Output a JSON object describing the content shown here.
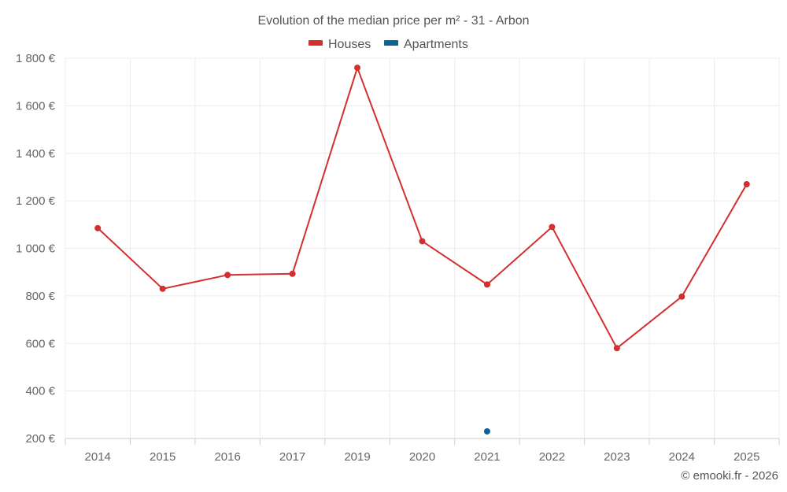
{
  "chart_data": {
    "type": "line",
    "title": "Evolution of the median price per m² - 31 - Arbon",
    "categories": [
      "2014",
      "2015",
      "2016",
      "2017",
      "2019",
      "2020",
      "2021",
      "2022",
      "2023",
      "2024",
      "2025"
    ],
    "series": [
      {
        "name": "Houses",
        "color": "#d32f2f",
        "values": [
          1085,
          830,
          888,
          893,
          1760,
          1030,
          848,
          1090,
          580,
          797,
          1270
        ]
      },
      {
        "name": "Apartments",
        "color": "#0d6296",
        "values": [
          null,
          null,
          null,
          null,
          null,
          null,
          230,
          null,
          null,
          null,
          null
        ]
      }
    ],
    "yticks": [
      "200 €",
      "400 €",
      "600 €",
      "800 €",
      "1 000 €",
      "1 200 €",
      "1 400 €",
      "1 600 €",
      "1 800 €"
    ],
    "ylim": [
      200,
      1800
    ],
    "grid": true,
    "legend_position": "top-center",
    "credit": "© emooki.fr - 2026"
  }
}
